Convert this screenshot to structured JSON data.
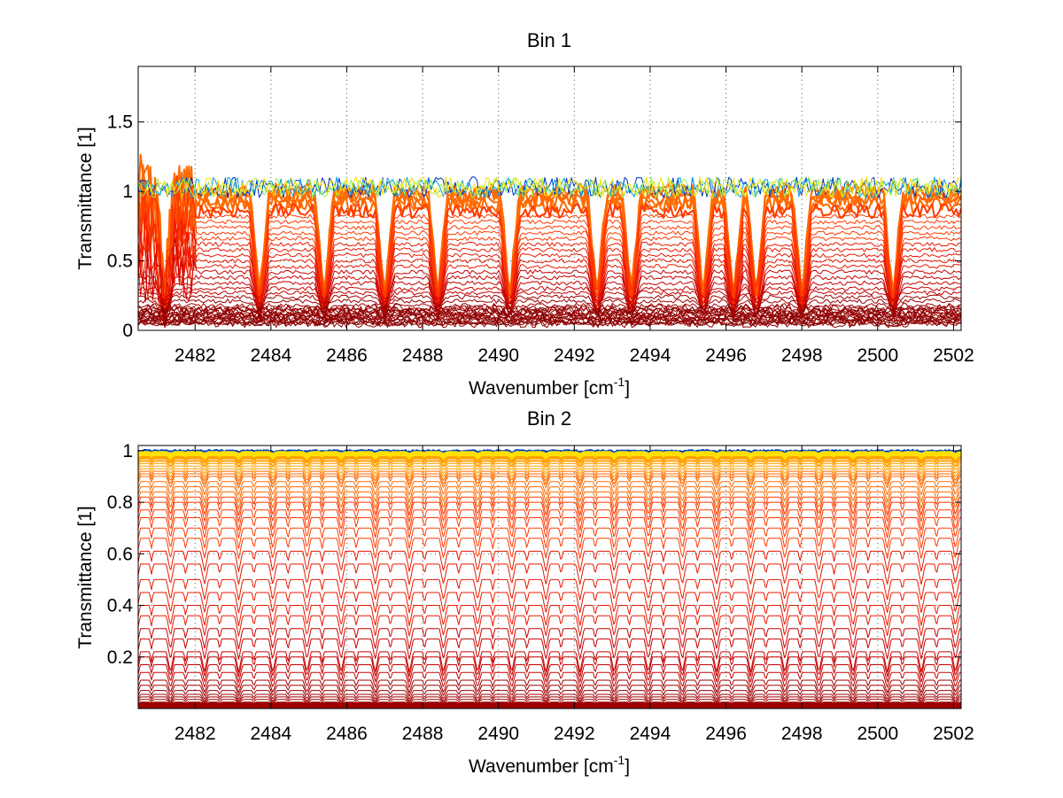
{
  "chart_data": [
    {
      "type": "line",
      "title": "Bin 1",
      "xlabel": "Wavenumber [cm",
      "xlabel_sup": "-1",
      "xlabel_end": "]",
      "ylabel": "Transmittance [1]",
      "xlim": [
        2480.5,
        2502.2
      ],
      "ylim": [
        0,
        1.9
      ],
      "xticks": [
        2482,
        2484,
        2486,
        2488,
        2490,
        2492,
        2494,
        2496,
        2498,
        2500,
        2502
      ],
      "xtick_labels": [
        "2482",
        "2484",
        "2486",
        "2488",
        "2490",
        "2492",
        "2494",
        "2496",
        "2498",
        "2500",
        "2502"
      ],
      "yticks": [
        0,
        0.5,
        1,
        1.5
      ],
      "ytick_labels": [
        "0",
        "0.5",
        "1",
        "1.5"
      ],
      "grid": true,
      "series_count": 60,
      "baseline_levels": [
        1.0,
        0.98,
        0.96,
        0.93,
        0.9,
        0.86,
        0.82,
        0.78,
        0.74,
        0.7,
        0.66,
        0.62,
        0.58,
        0.54,
        0.5,
        0.46,
        0.42,
        0.38,
        0.34,
        0.3,
        0.27,
        0.24,
        0.21,
        0.18,
        0.15,
        0.12,
        0.1,
        0.08,
        0.06,
        0.05
      ],
      "absorption_lines": [
        2481.2,
        2483.7,
        2485.4,
        2487.0,
        2488.4,
        2490.3,
        2492.6,
        2493.5,
        2495.4,
        2496.2,
        2496.8,
        2498.0,
        2500.4
      ],
      "colors": [
        "#0000b0",
        "#0050d0",
        "#00a0e0",
        "#40e0b0",
        "#c0f040",
        "#ffe000",
        "#ffa000",
        "#ff6a00",
        "#ff3a00",
        "#e81800",
        "#c80000",
        "#a00000",
        "#800000"
      ]
    },
    {
      "type": "line",
      "title": "Bin 2",
      "xlabel": "Wavenumber [cm",
      "xlabel_sup": "-1",
      "xlabel_end": "]",
      "ylabel": "Transmittance [1]",
      "xlim": [
        2480.5,
        2502.2
      ],
      "ylim": [
        0,
        1.02
      ],
      "xticks": [
        2482,
        2484,
        2486,
        2488,
        2490,
        2492,
        2494,
        2496,
        2498,
        2500,
        2502
      ],
      "xtick_labels": [
        "2482",
        "2484",
        "2486",
        "2488",
        "2490",
        "2492",
        "2494",
        "2496",
        "2498",
        "2500",
        "2502"
      ],
      "yticks": [
        0.2,
        0.4,
        0.6,
        0.8,
        1
      ],
      "ytick_labels": [
        "0.2",
        "0.4",
        "0.6",
        "0.8",
        "1"
      ],
      "grid": true,
      "series_count": 60,
      "baseline_levels": [
        1.0,
        0.995,
        0.99,
        0.985,
        0.98,
        0.975,
        0.97,
        0.96,
        0.95,
        0.94,
        0.93,
        0.92,
        0.91,
        0.9,
        0.88,
        0.86,
        0.84,
        0.82,
        0.8,
        0.77,
        0.74,
        0.7,
        0.66,
        0.61,
        0.56,
        0.5,
        0.45,
        0.4,
        0.36,
        0.31,
        0.27,
        0.22,
        0.2,
        0.17,
        0.14,
        0.11,
        0.09,
        0.07,
        0.055,
        0.045,
        0.035,
        0.025,
        0.02,
        0.015,
        0.01
      ],
      "line_spacing": 0.9,
      "colors": [
        "#0000b0",
        "#0050d0",
        "#00a0e0",
        "#40e0b0",
        "#c0f040",
        "#ffe000",
        "#ffa000",
        "#ff6a00",
        "#ff3a00",
        "#e81800",
        "#c80000",
        "#a00000",
        "#800000"
      ]
    }
  ]
}
